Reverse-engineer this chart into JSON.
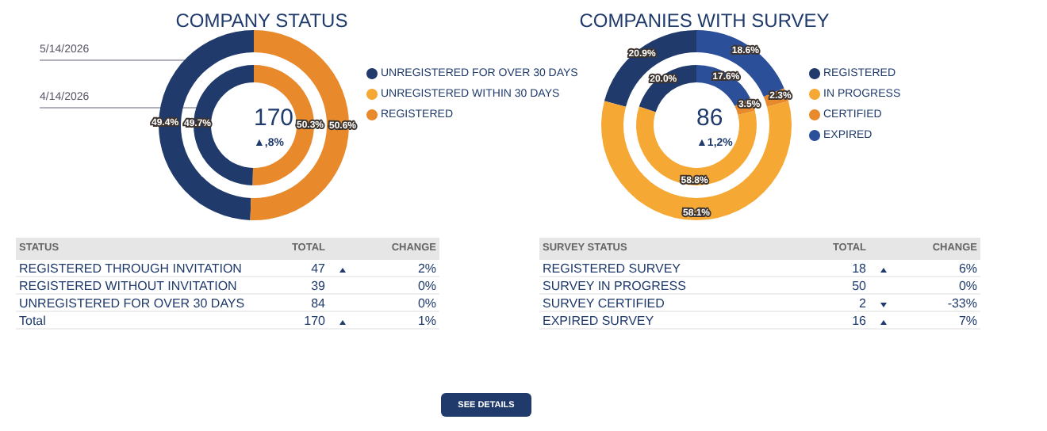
{
  "chart_data": [
    {
      "type": "donut",
      "title": "COMPANY STATUS",
      "categories": [
        "UNREGISTERED FOR OVER 30 DAYS",
        "UNREGISTERED WITHIN 30 DAYS",
        "REGISTERED"
      ],
      "colors": [
        "#1f3a6b",
        "#f5a833",
        "#e8892b"
      ],
      "legend": "right",
      "annotations": [
        "170",
        "▲,8%"
      ],
      "series": [
        {
          "name": "5/14/2026",
          "values": [
            49.4,
            0,
            50.6
          ],
          "value_labels": [
            "49.4%",
            null,
            "50.6%"
          ]
        },
        {
          "name": "4/14/2026",
          "values": [
            49.7,
            0,
            50.3
          ],
          "value_labels": [
            "49.7%",
            null,
            "50.3%"
          ]
        }
      ]
    },
    {
      "type": "donut",
      "title": "COMPANIES WITH SURVEY",
      "categories": [
        "REGISTERED",
        "IN PROGRESS",
        "CERTIFIED",
        "EXPIRED"
      ],
      "colors": [
        "#1f3a6b",
        "#f5a833",
        "#e8892b",
        "#2c4f9a"
      ],
      "legend": "right",
      "annotations": [
        "86",
        "▲1,2%"
      ],
      "series": [
        {
          "values": [
            20.9,
            58.1,
            2.3,
            18.6
          ],
          "value_labels": [
            "20.9%",
            "58.1%",
            "2.3%",
            "18.6%"
          ]
        },
        {
          "values": [
            20.0,
            58.8,
            3.5,
            17.6
          ],
          "value_labels": [
            "20.0%",
            "58.8%",
            "3.5%",
            "17.6%"
          ]
        }
      ]
    },
    {
      "type": "other",
      "xlabel": "STATUS",
      "data_labels": true,
      "categories": [
        "REGISTERED THROUGH INVITATION",
        "REGISTERED WITHOUT INVITATION",
        "UNREGISTERED FOR OVER 30 DAYS",
        "Total"
      ],
      "series": [
        {
          "name": "TOTAL",
          "values": [
            47,
            39,
            84,
            170
          ]
        },
        {
          "name": "CHANGE",
          "values": [
            2,
            0,
            0,
            1
          ],
          "value_labels": [
            "2%",
            "0%",
            "0%",
            "1%"
          ]
        }
      ]
    },
    {
      "type": "other",
      "xlabel": "SURVEY STATUS",
      "data_labels": true,
      "categories": [
        "REGISTERED SURVEY",
        "SURVEY IN PROGRESS",
        "SURVEY CERTIFIED",
        "EXPIRED SURVEY"
      ],
      "series": [
        {
          "name": "TOTAL",
          "values": [
            18,
            50,
            2,
            16
          ]
        },
        {
          "name": "CHANGE",
          "values": [
            6,
            0,
            -33,
            7
          ],
          "value_labels": [
            "6%",
            "0%",
            "-33%",
            "7%"
          ]
        }
      ]
    },
    {
      "type": "other",
      "annotations": [
        "SEE DETAILS"
      ]
    }
  ]
}
